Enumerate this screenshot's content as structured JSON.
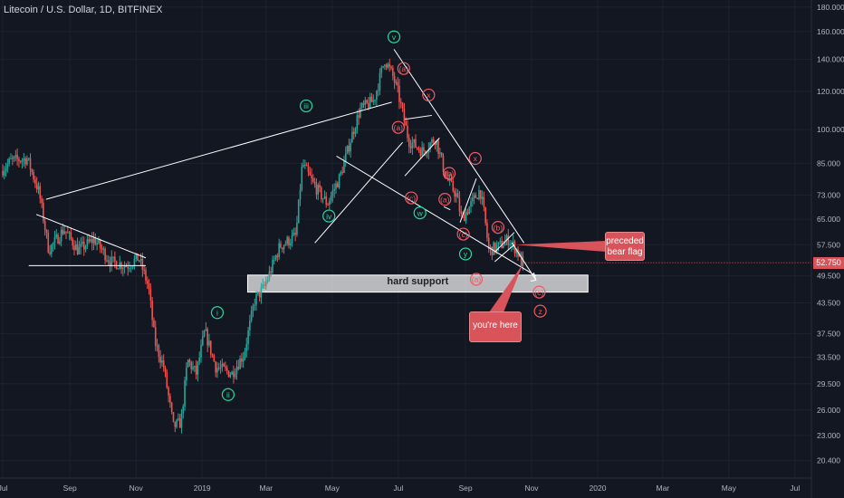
{
  "header": {
    "title": "Litecoin / U.S. Dollar, 1D, BITFINEX"
  },
  "colors": {
    "background": "#131722",
    "up": "#26a69a",
    "down": "#ef5350",
    "green_label": "#26d9a0",
    "red_label": "#f05b64",
    "line": "#ffffff",
    "callout": "#d9535a",
    "price_tag": "#d9535a"
  },
  "chart_data": {
    "type": "candlestick",
    "title": "Litecoin / U.S. Dollar, 1D, BITFINEX",
    "y_scale": "log",
    "ylim": [
      19.5,
      183
    ],
    "y_ticks": [
      "180.000",
      "160.000",
      "140.000",
      "120.000",
      "100.000",
      "85.000",
      "73.000",
      "65.000",
      "57.500",
      "49.500",
      "43.500",
      "37.500",
      "33.500",
      "29.500",
      "26.000",
      "23.000",
      "20.400"
    ],
    "x_ticks": [
      "Jul",
      "Sep",
      "Nov",
      "2019",
      "Mar",
      "May",
      "Jul",
      "Sep",
      "Nov",
      "2020",
      "Mar",
      "May",
      "Jul"
    ],
    "last_price": "52.750",
    "price_path": [
      [
        "2018-07-01",
        82
      ],
      [
        "2018-07-10",
        86
      ],
      [
        "2018-07-25",
        87
      ],
      [
        "2018-08-05",
        74
      ],
      [
        "2018-08-14",
        56
      ],
      [
        "2018-08-28",
        62
      ],
      [
        "2018-09-10",
        56
      ],
      [
        "2018-09-25",
        59
      ],
      [
        "2018-10-10",
        53
      ],
      [
        "2018-10-25",
        52
      ],
      [
        "2018-11-05",
        54
      ],
      [
        "2018-11-14",
        47
      ],
      [
        "2018-11-20",
        36
      ],
      [
        "2018-11-28",
        32
      ],
      [
        "2018-12-07",
        24
      ],
      [
        "2018-12-14",
        24.5
      ],
      [
        "2018-12-20",
        33
      ],
      [
        "2018-12-28",
        31
      ],
      [
        "2019-01-05",
        38
      ],
      [
        "2019-01-15",
        32
      ],
      [
        "2019-01-30",
        31
      ],
      [
        "2019-02-10",
        34
      ],
      [
        "2019-02-20",
        44
      ],
      [
        "2019-03-01",
        47
      ],
      [
        "2019-03-15",
        57
      ],
      [
        "2019-03-30",
        60
      ],
      [
        "2019-04-05",
        85
      ],
      [
        "2019-04-15",
        77
      ],
      [
        "2019-04-28",
        70
      ],
      [
        "2019-05-10",
        80
      ],
      [
        "2019-05-20",
        96
      ],
      [
        "2019-05-28",
        110
      ],
      [
        "2019-06-10",
        115
      ],
      [
        "2019-06-20",
        140
      ],
      [
        "2019-06-27",
        130
      ],
      [
        "2019-07-02",
        120
      ],
      [
        "2019-07-12",
        95
      ],
      [
        "2019-07-25",
        90
      ],
      [
        "2019-08-06",
        96
      ],
      [
        "2019-08-15",
        80
      ],
      [
        "2019-08-25",
        73
      ],
      [
        "2019-08-30",
        65
      ],
      [
        "2019-09-08",
        70
      ],
      [
        "2019-09-16",
        75
      ],
      [
        "2019-09-20",
        66
      ],
      [
        "2019-09-24",
        56
      ],
      [
        "2019-10-03",
        57
      ],
      [
        "2019-10-12",
        59
      ],
      [
        "2019-10-20",
        56
      ],
      [
        "2019-10-24",
        53
      ]
    ]
  },
  "annotations": {
    "waves_green": [
      {
        "label": "i",
        "date": "2019-01-15",
        "price": 41.5
      },
      {
        "label": "ii",
        "date": "2019-01-25",
        "price": 28.0
      },
      {
        "label": "iii",
        "date": "2019-04-07",
        "price": 112
      },
      {
        "label": "iv",
        "date": "2019-04-28",
        "price": 66
      },
      {
        "label": "v",
        "date": "2019-06-27",
        "price": 156
      },
      {
        "label": "w",
        "date": "2019-07-21",
        "price": 67
      },
      {
        "label": "y",
        "date": "2019-09-01",
        "price": 55
      }
    ],
    "waves_red": [
      {
        "label": "(a)",
        "date": "2019-07-06",
        "price": 134
      },
      {
        "label": "x",
        "date": "2019-07-29",
        "price": 118
      },
      {
        "label": "(a)",
        "date": "2019-07-01",
        "price": 101
      },
      {
        "label": "(b)",
        "date": "2019-08-17",
        "price": 81
      },
      {
        "label": "(c)",
        "date": "2019-07-13",
        "price": 72
      },
      {
        "label": "x",
        "date": "2019-09-10",
        "price": 87
      },
      {
        "label": "(a)",
        "date": "2019-08-13",
        "price": 71.5
      },
      {
        "label": "(c)",
        "date": "2019-08-30",
        "price": 60.5
      },
      {
        "label": "(b)",
        "date": "2019-10-01",
        "price": 62.5
      },
      {
        "label": "(a)",
        "date": "2019-09-11",
        "price": 48.7
      },
      {
        "label": "(c)",
        "date": "2019-11-08",
        "price": 45.8
      },
      {
        "label": "z",
        "date": "2019-11-09",
        "price": 41.8
      }
    ],
    "support_label": "hard support",
    "callout_flag": "preceded bear flag",
    "callout_here": "you're here"
  }
}
